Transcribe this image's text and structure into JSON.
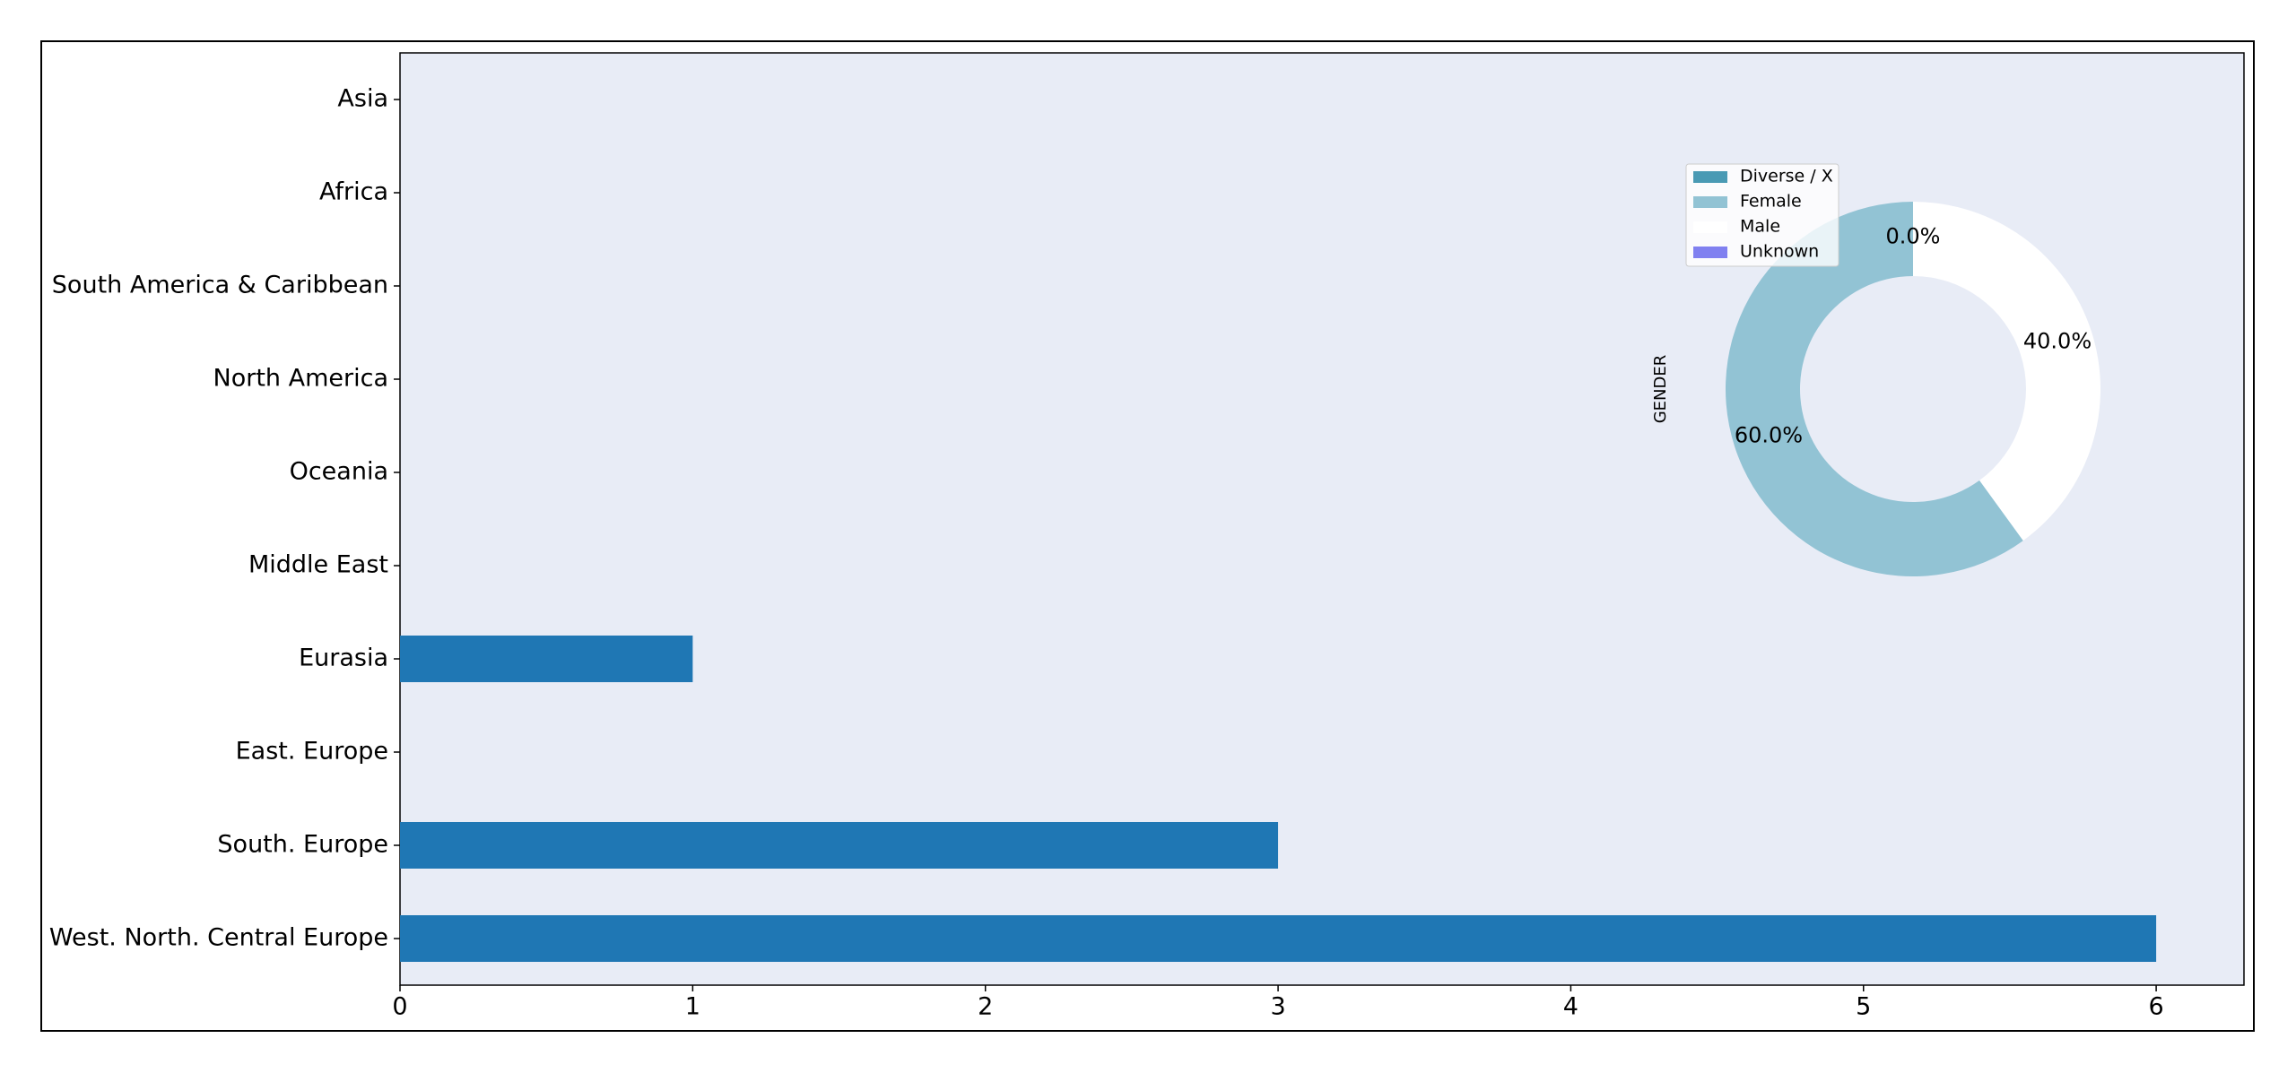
{
  "chart_data": [
    {
      "type": "barh",
      "categories": [
        "Asia",
        "Africa",
        "South America & Caribbean",
        "North America",
        "Oceania",
        "Middle East",
        "Eurasia",
        "East. Europe",
        "South. Europe",
        "West. North. Central Europe"
      ],
      "values": [
        0,
        0,
        0,
        0,
        0,
        0,
        1,
        0,
        3,
        6
      ],
      "color": "#1f77b4",
      "xlim": [
        0,
        6.3
      ],
      "xticks": [
        0,
        1,
        2,
        3,
        4,
        5,
        6
      ]
    },
    {
      "type": "pie",
      "ylabel": "GENDER",
      "categories": [
        "Diverse / X",
        "Female",
        "Male",
        "Unknown"
      ],
      "values": [
        0,
        60,
        40,
        0
      ],
      "value_labels": [
        "0.0%",
        "60.0%",
        "40.0%",
        "0.0%"
      ],
      "colors": [
        "#4a9ab4",
        "#92c3d4",
        "#ffffff",
        "#8080f0"
      ]
    }
  ]
}
